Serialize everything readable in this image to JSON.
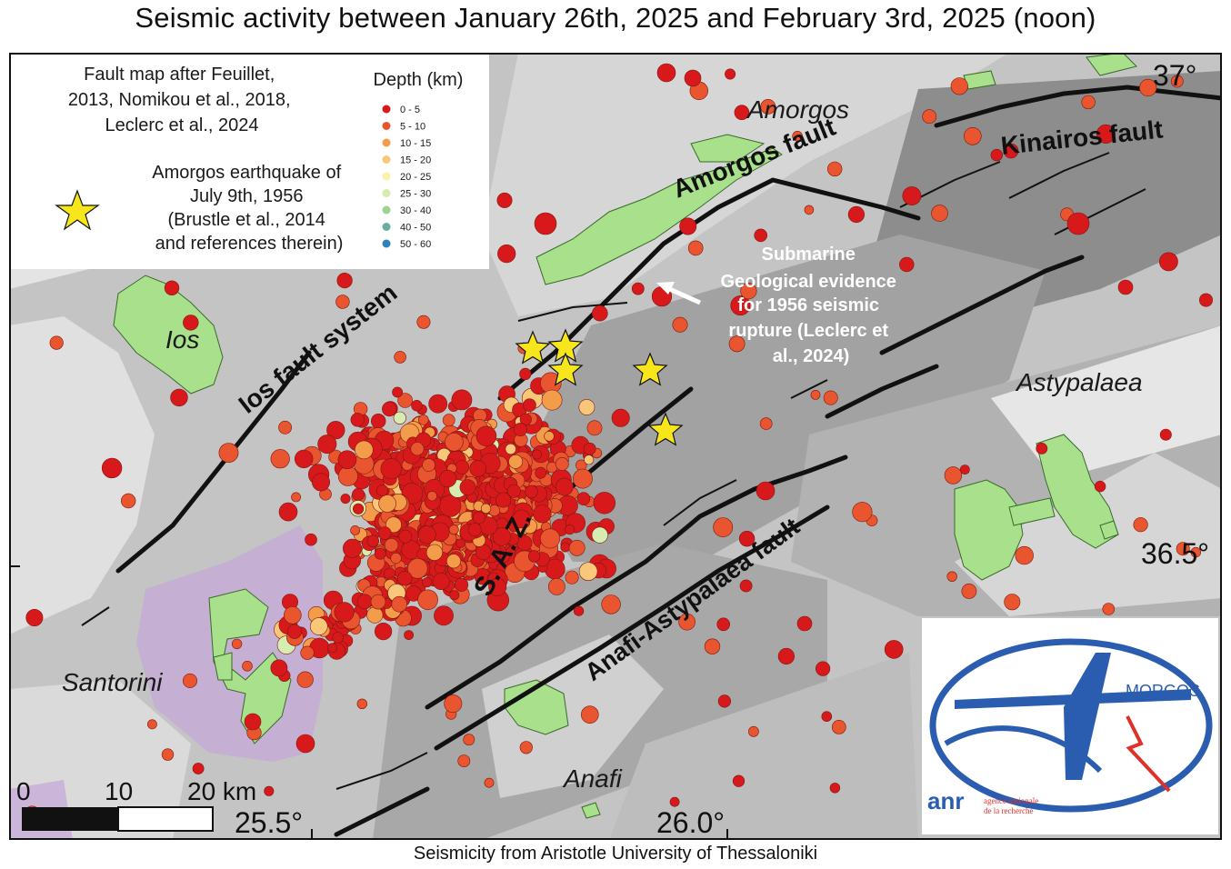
{
  "title": "Seismic activity between January 26th, 2025 and February 3rd, 2025 (noon)",
  "footer": "Seismicity from Aristotle University of Thessaloniki",
  "legend": {
    "fault_source": [
      "Fault map after Feuillet,",
      "2013, Nomikou et al., 2018,",
      "Leclerc et al., 2024"
    ],
    "star_label": [
      "Amorgos earthquake of",
      "July 9th, 1956",
      "(Brustle et al., 2014",
      "and references therein)"
    ],
    "depth_title": "Depth (km)",
    "depth_classes": [
      {
        "label": "0 - 5",
        "color": "#d7191c"
      },
      {
        "label": "5 - 10",
        "color": "#e8552f"
      },
      {
        "label": "10 - 15",
        "color": "#f39c4a"
      },
      {
        "label": "15 - 20",
        "color": "#f9c77a"
      },
      {
        "label": "20 - 25",
        "color": "#fbf1a8"
      },
      {
        "label": "25 - 30",
        "color": "#d6ecb0"
      },
      {
        "label": "30 - 40",
        "color": "#9fd28f"
      },
      {
        "label": "40 - 50",
        "color": "#6aaea3"
      },
      {
        "label": "50 - 60",
        "color": "#2b83ba"
      }
    ]
  },
  "places": {
    "amorgos": "Amorgos",
    "ios": "Ios",
    "santorini": "Santorini",
    "anafi": "Anafi",
    "astypalaea": "Astypalaea"
  },
  "faults": {
    "amorgos_fault": "Amorgos fault",
    "kinairos_fault": "Kinairos fault",
    "ios_fault_system": "Ios fault system",
    "anafi_astypalaea_fault": "Anafi-Astypalaea fault",
    "santorini_amorgos_zone": "S. A. Z."
  },
  "annotation": [
    "Submarine",
    "Geological evidence",
    "for 1956 seismic",
    "rupture (Leclerc et",
    "al., 2024)"
  ],
  "coords": {
    "lat_37": "37°",
    "lat_36_5": "36.5°",
    "lon_25_5": "25.5°",
    "lon_26_0": "26.0°"
  },
  "scale_bar": {
    "ticks": [
      "0",
      "10",
      "20 km"
    ]
  },
  "logo": {
    "word": "MORGOS",
    "letter": "A",
    "anr": "anr",
    "agency": [
      "agence nationale",
      "de la recherche"
    ]
  },
  "colors": {
    "land": "#a8e08c",
    "sea_light": "#dcdcdc",
    "sea_dark": "#9a9a9a",
    "caldera": "#c6a8d8",
    "star": "#f7e61c",
    "logo_blue": "#2a5db0",
    "logo_red": "#e0302a"
  }
}
